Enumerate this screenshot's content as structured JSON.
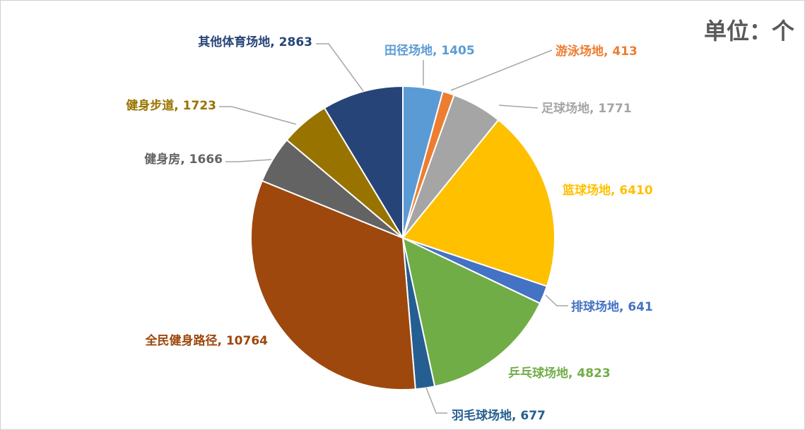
{
  "unit_label": "单位：个",
  "chart_data": {
    "type": "pie",
    "title": "",
    "start_angle_deg": 0,
    "direction": "clockwise",
    "slices": [
      {
        "name": "田径场地",
        "value": 1405,
        "label": "田径场地, 1405",
        "color": "#5B9BD5"
      },
      {
        "name": "游泳场地",
        "value": 413,
        "label": "游泳场地, 413",
        "color": "#ED7D31"
      },
      {
        "name": "足球场地",
        "value": 1771,
        "label": "足球场地, 1771",
        "color": "#A5A5A5"
      },
      {
        "name": "篮球场地",
        "value": 6410,
        "label": "篮球场地, 6410",
        "color": "#FFC000"
      },
      {
        "name": "排球场地",
        "value": 641,
        "label": "排球场地, 641",
        "color": "#4472C4"
      },
      {
        "name": "乒乓球场地",
        "value": 4823,
        "label": "乒乓球场地, 4823",
        "color": "#70AD47"
      },
      {
        "name": "羽毛球场地",
        "value": 677,
        "label": "羽毛球场地, 677",
        "color": "#255E91"
      },
      {
        "name": "全民健身路径",
        "value": 10764,
        "label": "全民健身路径, 10764",
        "color": "#9E480E"
      },
      {
        "name": "健身房",
        "value": 1666,
        "label": "健身房, 1666",
        "color": "#636363"
      },
      {
        "name": "健身步道",
        "value": 1723,
        "label": "健身步道, 1723",
        "color": "#997300"
      },
      {
        "name": "其他体育场地",
        "value": 2863,
        "label": "其他体育场地, 2863",
        "color": "#264478"
      }
    ]
  }
}
